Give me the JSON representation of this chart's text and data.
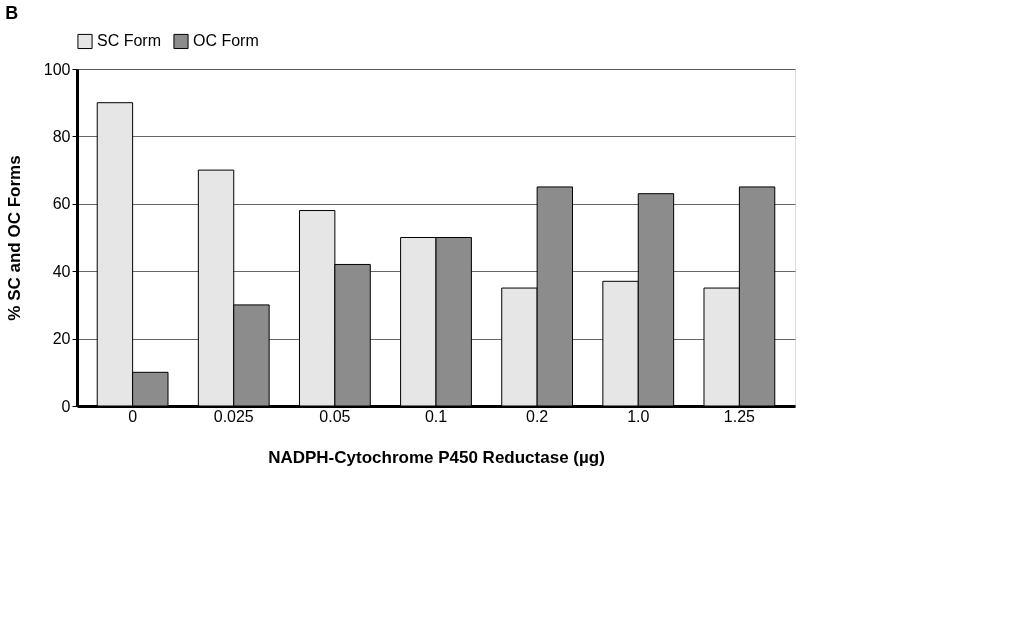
{
  "chart_data": {
    "type": "bar",
    "title": "B",
    "xlabel": "NADPH-Cytochrome P450 Reductase (µg)",
    "ylabel": "% SC and OC Forms",
    "categories": [
      "0",
      "0.025",
      "0.05",
      "0.1",
      "0.2",
      "1.0",
      "1.25"
    ],
    "series": [
      {
        "name": "SC Form",
        "color": "#e6e6e6",
        "values": [
          90,
          70,
          58,
          50,
          35,
          37,
          35
        ]
      },
      {
        "name": "OC Form",
        "color": "#8c8c8c",
        "values": [
          10,
          30,
          42,
          50,
          65,
          63,
          65
        ]
      }
    ],
    "ylim": [
      0,
      100
    ],
    "yticks": [
      0,
      20,
      40,
      60,
      80,
      100
    ],
    "grid": "y",
    "legend": "top"
  }
}
